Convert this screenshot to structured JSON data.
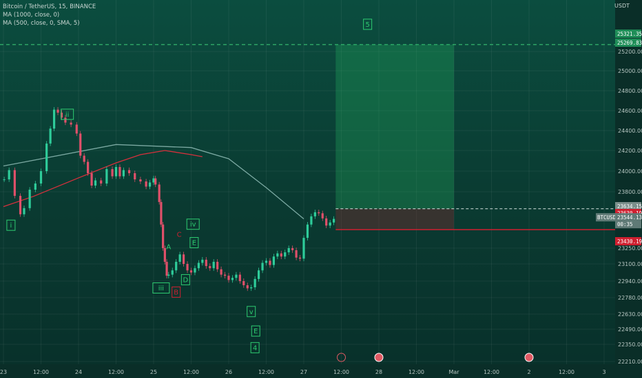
{
  "chart_data": {
    "type": "candlestick",
    "title": "Bitcoin / TetherUS, 15, BINANCE",
    "indicators": [
      {
        "label": "MA (1000, close, 0)",
        "color": "#7ba9a2"
      },
      {
        "label": "MA (500, close, 0, SMA, 5)",
        "color": "#d8303c"
      }
    ],
    "unit_label": "USDT",
    "x_ticks": [
      "23",
      "12:00",
      "24",
      "12:00",
      "25",
      "12:00",
      "26",
      "12:00",
      "27",
      "12:00",
      "28",
      "12:00",
      "Mar",
      "12:00",
      "2",
      "12:00",
      "3"
    ],
    "y_ticks": [
      "25200.00",
      "25000.00",
      "24800.00",
      "24600.00",
      "24400.00",
      "24200.00",
      "24000.00",
      "23800.00",
      "23250.00",
      "23100.00",
      "22940.00",
      "22780.00",
      "22630.00",
      "22490.00",
      "22350.00",
      "22210.00"
    ],
    "price_tags": [
      {
        "value": "25321.35",
        "color": "#1f8e58"
      },
      {
        "value": "25269.83",
        "color": "#1f8e58"
      },
      {
        "value": "23634.15",
        "color": "#7a8f8b"
      },
      {
        "value": "23630.19",
        "color": "#cf2030"
      },
      {
        "value": "23430.19",
        "color": "#cf2030"
      }
    ],
    "current": {
      "symbol": "BTCUSDT",
      "price": "23544.13",
      "countdown": "00:35"
    },
    "target_line": 25269.83,
    "entry_price": 23634.15,
    "stop_price": 23430.19,
    "ma1000": [
      [
        0,
        24050
      ],
      [
        3,
        24260
      ],
      [
        5,
        24230
      ],
      [
        6,
        24120
      ],
      [
        7,
        23840
      ],
      [
        8,
        23535
      ]
    ],
    "ma500": [
      [
        0,
        23655
      ],
      [
        0.8,
        23755
      ],
      [
        2,
        23935
      ],
      [
        3,
        24080
      ],
      [
        3.65,
        24160
      ],
      [
        4.3,
        24200
      ],
      [
        5,
        24160
      ],
      [
        5.3,
        24140
      ]
    ],
    "candles": [
      [
        0.02,
        23920
      ],
      [
        0.15,
        24010
      ],
      [
        0.3,
        23760
      ],
      [
        0.45,
        23580
      ],
      [
        0.55,
        23640
      ],
      [
        0.7,
        23820
      ],
      [
        0.85,
        23880
      ],
      [
        1.0,
        24000
      ],
      [
        1.15,
        24270
      ],
      [
        1.25,
        24420
      ],
      [
        1.35,
        24610
      ],
      [
        1.45,
        24580
      ],
      [
        1.55,
        24530
      ],
      [
        1.65,
        24480
      ],
      [
        1.8,
        24460
      ],
      [
        1.95,
        24370
      ],
      [
        2.05,
        24150
      ],
      [
        2.15,
        24090
      ],
      [
        2.25,
        23980
      ],
      [
        2.35,
        23860
      ],
      [
        2.45,
        23910
      ],
      [
        2.6,
        23880
      ],
      [
        2.75,
        24020
      ],
      [
        2.9,
        23950
      ],
      [
        3.0,
        24040
      ],
      [
        3.1,
        23950
      ],
      [
        3.2,
        24010
      ],
      [
        3.35,
        23980
      ],
      [
        3.5,
        23920
      ],
      [
        3.65,
        23900
      ],
      [
        3.8,
        23850
      ],
      [
        3.9,
        23890
      ],
      [
        4.0,
        23930
      ],
      [
        4.05,
        23870
      ],
      [
        4.15,
        23700
      ],
      [
        4.2,
        23480
      ],
      [
        4.25,
        23250
      ],
      [
        4.3,
        23120
      ],
      [
        4.35,
        22990
      ],
      [
        4.4,
        23000
      ],
      [
        4.5,
        23040
      ],
      [
        4.6,
        23120
      ],
      [
        4.7,
        23190
      ],
      [
        4.8,
        23100
      ],
      [
        4.9,
        23040
      ],
      [
        5.0,
        23020
      ],
      [
        5.1,
        23060
      ],
      [
        5.2,
        23110
      ],
      [
        5.3,
        23140
      ],
      [
        5.4,
        23080
      ],
      [
        5.5,
        23060
      ],
      [
        5.6,
        23120
      ],
      [
        5.7,
        23050
      ],
      [
        5.8,
        23000
      ],
      [
        5.9,
        22990
      ],
      [
        6.0,
        22950
      ],
      [
        6.1,
        22970
      ],
      [
        6.2,
        23000
      ],
      [
        6.3,
        22940
      ],
      [
        6.4,
        22900
      ],
      [
        6.5,
        22870
      ],
      [
        6.6,
        22880
      ],
      [
        6.7,
        22960
      ],
      [
        6.8,
        23040
      ],
      [
        6.9,
        23110
      ],
      [
        7.0,
        23130
      ],
      [
        7.1,
        23090
      ],
      [
        7.2,
        23170
      ],
      [
        7.3,
        23200
      ],
      [
        7.4,
        23170
      ],
      [
        7.5,
        23210
      ],
      [
        7.6,
        23250
      ],
      [
        7.7,
        23230
      ],
      [
        7.8,
        23160
      ],
      [
        7.9,
        23150
      ],
      [
        8.0,
        23350
      ],
      [
        8.1,
        23480
      ],
      [
        8.2,
        23560
      ],
      [
        8.3,
        23600
      ],
      [
        8.4,
        23590
      ],
      [
        8.5,
        23540
      ],
      [
        8.6,
        23470
      ],
      [
        8.7,
        23500
      ],
      [
        8.8,
        23535
      ]
    ],
    "wave_labels": [
      {
        "text": "i",
        "x": 0.2,
        "y": 23470,
        "color": "#2ecc71",
        "box": true
      },
      {
        "text": "ii",
        "x": 1.7,
        "y": 24560,
        "color": "#2ecc71",
        "box": true
      },
      {
        "text": "iii",
        "x": 4.2,
        "y": 22870,
        "color": "#2ecc71",
        "box": true
      },
      {
        "text": "iv",
        "x": 5.05,
        "y": 23480,
        "color": "#2ecc71",
        "box": true
      },
      {
        "text": "v",
        "x": 6.6,
        "y": 22650,
        "color": "#2ecc71",
        "box": true
      },
      {
        "text": "A",
        "x": 4.4,
        "y": 23260,
        "color": "#2ecc71",
        "box": false
      },
      {
        "text": "B",
        "x": 4.6,
        "y": 22830,
        "color": "#cf2030",
        "box": true
      },
      {
        "text": "C",
        "x": 4.68,
        "y": 23380,
        "color": "#cf2030",
        "box": false
      },
      {
        "text": "D",
        "x": 4.85,
        "y": 22950,
        "color": "#2ecc71",
        "box": true
      },
      {
        "text": "E",
        "x": 5.08,
        "y": 23300,
        "color": "#2ecc71",
        "box": true
      },
      {
        "text": "E",
        "x": 6.72,
        "y": 22470,
        "color": "#2ecc71",
        "box": true
      },
      {
        "text": "4",
        "x": 6.7,
        "y": 22320,
        "color": "#2ecc71",
        "box": true
      },
      {
        "text": "5",
        "x": 9.7,
        "y": 25470,
        "color": "#2ecc71",
        "box": true
      }
    ],
    "event_markers": [
      {
        "x": 9.0,
        "kind": "flash"
      },
      {
        "x": 10.0,
        "kind": "earnings"
      },
      {
        "x": 14.0,
        "kind": "earnings"
      }
    ],
    "grid": true,
    "legend_placement": "top-left"
  }
}
